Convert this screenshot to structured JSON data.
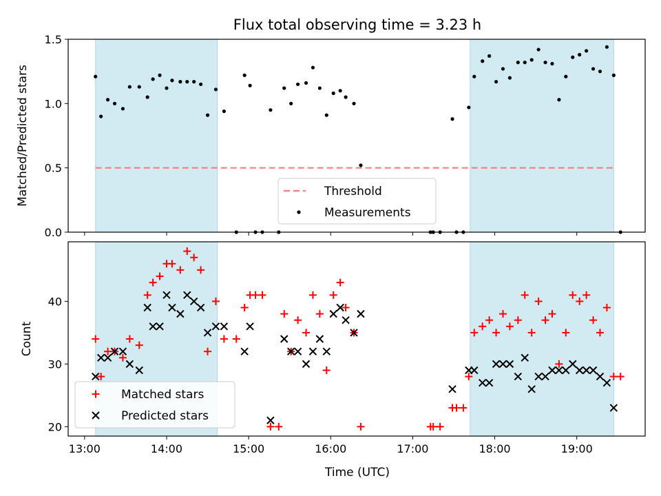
{
  "title": "Flux total observing time = 3.23 h",
  "colors": {
    "threshold": "#f08080",
    "shade": "#add8e6",
    "matched": "#ff0000",
    "predicted": "#000000",
    "measurement": "#000000"
  },
  "chart_data": [
    {
      "type": "scatter",
      "panel": "top",
      "ylabel": "Matched/Predicted stars",
      "xlabel": "",
      "xlim": [
        "12:48",
        "19:50"
      ],
      "ylim": [
        0,
        1.5
      ],
      "yticks": [
        "0.0",
        "0.5",
        "1.0",
        "1.5"
      ],
      "shaded_regions": [
        [
          "13:08",
          "14:37"
        ],
        [
          "17:42",
          "19:27"
        ]
      ],
      "threshold": {
        "name": "Threshold",
        "y": 0.5,
        "x_range": [
          "13:08",
          "19:27"
        ]
      },
      "legend": {
        "entries": [
          "Threshold",
          "Measurements"
        ],
        "position": "lower center"
      },
      "series": [
        {
          "name": "Measurements",
          "points": [
            [
              "13:08",
              1.21
            ],
            [
              "13:12",
              0.9
            ],
            [
              "13:17",
              1.03
            ],
            [
              "13:22",
              1.0
            ],
            [
              "13:28",
              0.96
            ],
            [
              "13:33",
              1.13
            ],
            [
              "13:40",
              1.13
            ],
            [
              "13:46",
              1.05
            ],
            [
              "13:50",
              1.19
            ],
            [
              "13:55",
              1.22
            ],
            [
              "14:00",
              1.12
            ],
            [
              "14:04",
              1.18
            ],
            [
              "14:10",
              1.17
            ],
            [
              "14:15",
              1.17
            ],
            [
              "14:20",
              1.17
            ],
            [
              "14:25",
              1.15
            ],
            [
              "14:30",
              0.91
            ],
            [
              "14:36",
              1.11
            ],
            [
              "14:42",
              0.94
            ],
            [
              "14:51",
              0.0
            ],
            [
              "15:05",
              0.0
            ],
            [
              "15:10",
              0.0
            ],
            [
              "15:22",
              0.0
            ],
            [
              "14:57",
              1.22
            ],
            [
              "15:01",
              1.14
            ],
            [
              "15:16",
              0.95
            ],
            [
              "15:26",
              1.12
            ],
            [
              "15:31",
              1.0
            ],
            [
              "15:36",
              1.15
            ],
            [
              "15:42",
              1.16
            ],
            [
              "15:47",
              1.28
            ],
            [
              "15:52",
              1.12
            ],
            [
              "15:57",
              0.91
            ],
            [
              "16:02",
              1.08
            ],
            [
              "16:07",
              1.1
            ],
            [
              "16:11",
              1.05
            ],
            [
              "16:17",
              1.0
            ],
            [
              "16:22",
              0.52
            ],
            [
              "17:13",
              0.0
            ],
            [
              "17:15",
              0.0
            ],
            [
              "17:20",
              0.0
            ],
            [
              "17:32",
              0.0
            ],
            [
              "17:37",
              0.0
            ],
            [
              "17:29",
              0.88
            ],
            [
              "17:41",
              0.97
            ],
            [
              "17:45",
              1.21
            ],
            [
              "17:51",
              1.33
            ],
            [
              "17:56",
              1.37
            ],
            [
              "18:01",
              1.17
            ],
            [
              "18:06",
              1.27
            ],
            [
              "18:11",
              1.2
            ],
            [
              "18:17",
              1.32
            ],
            [
              "18:22",
              1.32
            ],
            [
              "18:27",
              1.34
            ],
            [
              "18:32",
              1.42
            ],
            [
              "18:37",
              1.32
            ],
            [
              "18:42",
              1.31
            ],
            [
              "18:47",
              1.03
            ],
            [
              "18:52",
              1.21
            ],
            [
              "18:57",
              1.36
            ],
            [
              "19:02",
              1.38
            ],
            [
              "19:07",
              1.41
            ],
            [
              "19:12",
              1.27
            ],
            [
              "19:17",
              1.25
            ],
            [
              "19:22",
              1.44
            ],
            [
              "19:27",
              1.22
            ],
            [
              "19:32",
              0.0
            ]
          ]
        }
      ]
    },
    {
      "type": "scatter",
      "panel": "bottom",
      "xlabel": "Time (UTC)",
      "ylabel": "Count",
      "xlim": [
        "12:48",
        "19:50"
      ],
      "ylim": [
        18.5,
        49.5
      ],
      "xticks": [
        "13:00",
        "14:00",
        "15:00",
        "16:00",
        "17:00",
        "18:00",
        "19:00"
      ],
      "yticks": [
        "20",
        "30",
        "40"
      ],
      "shaded_regions": [
        [
          "13:08",
          "14:37"
        ],
        [
          "17:42",
          "19:27"
        ]
      ],
      "legend": {
        "entries": [
          "Matched stars",
          "Predicted stars"
        ],
        "position": "lower left"
      },
      "series": [
        {
          "name": "Matched stars",
          "marker": "+",
          "points": [
            [
              "13:08",
              34
            ],
            [
              "13:12",
              28
            ],
            [
              "13:17",
              32
            ],
            [
              "13:22",
              32
            ],
            [
              "13:28",
              31
            ],
            [
              "13:33",
              34
            ],
            [
              "13:40",
              33
            ],
            [
              "13:46",
              41
            ],
            [
              "13:50",
              43
            ],
            [
              "13:55",
              44
            ],
            [
              "14:00",
              46
            ],
            [
              "14:04",
              46
            ],
            [
              "14:10",
              45
            ],
            [
              "14:15",
              48
            ],
            [
              "14:20",
              47
            ],
            [
              "14:25",
              45
            ],
            [
              "14:30",
              32
            ],
            [
              "14:36",
              40
            ],
            [
              "14:42",
              34
            ],
            [
              "14:51",
              34
            ],
            [
              "14:57",
              39
            ],
            [
              "15:01",
              41
            ],
            [
              "15:05",
              41
            ],
            [
              "15:10",
              41
            ],
            [
              "15:16",
              20
            ],
            [
              "15:22",
              20
            ],
            [
              "15:26",
              38
            ],
            [
              "15:31",
              32
            ],
            [
              "15:36",
              37
            ],
            [
              "15:42",
              35
            ],
            [
              "15:47",
              41
            ],
            [
              "15:52",
              38
            ],
            [
              "15:57",
              29
            ],
            [
              "16:02",
              41
            ],
            [
              "16:07",
              43
            ],
            [
              "16:11",
              39
            ],
            [
              "16:17",
              35
            ],
            [
              "16:22",
              20
            ],
            [
              "17:13",
              20
            ],
            [
              "17:15",
              20
            ],
            [
              "17:20",
              20
            ],
            [
              "17:29",
              23
            ],
            [
              "17:32",
              23
            ],
            [
              "17:37",
              23
            ],
            [
              "17:41",
              28
            ],
            [
              "17:45",
              35
            ],
            [
              "17:51",
              36
            ],
            [
              "17:56",
              37
            ],
            [
              "18:01",
              35
            ],
            [
              "18:06",
              38
            ],
            [
              "18:11",
              36
            ],
            [
              "18:17",
              37
            ],
            [
              "18:22",
              41
            ],
            [
              "18:27",
              35
            ],
            [
              "18:32",
              40
            ],
            [
              "18:37",
              37
            ],
            [
              "18:42",
              38
            ],
            [
              "18:47",
              30
            ],
            [
              "18:52",
              35
            ],
            [
              "18:57",
              41
            ],
            [
              "19:02",
              40
            ],
            [
              "19:07",
              41
            ],
            [
              "19:12",
              37
            ],
            [
              "19:17",
              35
            ],
            [
              "19:22",
              39
            ],
            [
              "19:27",
              28
            ],
            [
              "19:32",
              28
            ]
          ]
        },
        {
          "name": "Predicted stars",
          "marker": "x",
          "points": [
            [
              "13:08",
              28
            ],
            [
              "13:12",
              31
            ],
            [
              "13:17",
              31
            ],
            [
              "13:22",
              32
            ],
            [
              "13:28",
              32
            ],
            [
              "13:33",
              30
            ],
            [
              "13:40",
              29
            ],
            [
              "13:46",
              39
            ],
            [
              "13:50",
              36
            ],
            [
              "13:55",
              36
            ],
            [
              "14:00",
              41
            ],
            [
              "14:04",
              39
            ],
            [
              "14:10",
              38
            ],
            [
              "14:15",
              41
            ],
            [
              "14:20",
              40
            ],
            [
              "14:25",
              39
            ],
            [
              "14:30",
              35
            ],
            [
              "14:36",
              36
            ],
            [
              "14:42",
              36
            ],
            [
              "14:57",
              32
            ],
            [
              "15:01",
              36
            ],
            [
              "15:16",
              21
            ],
            [
              "15:26",
              34
            ],
            [
              "15:31",
              32
            ],
            [
              "15:36",
              32
            ],
            [
              "15:42",
              30
            ],
            [
              "15:47",
              32
            ],
            [
              "15:52",
              34
            ],
            [
              "15:57",
              32
            ],
            [
              "16:02",
              38
            ],
            [
              "16:07",
              39
            ],
            [
              "16:11",
              37
            ],
            [
              "16:17",
              35
            ],
            [
              "16:22",
              38
            ],
            [
              "17:29",
              26
            ],
            [
              "17:41",
              29
            ],
            [
              "17:45",
              29
            ],
            [
              "17:51",
              27
            ],
            [
              "17:56",
              27
            ],
            [
              "18:01",
              30
            ],
            [
              "18:06",
              30
            ],
            [
              "18:11",
              30
            ],
            [
              "18:17",
              28
            ],
            [
              "18:22",
              31
            ],
            [
              "18:27",
              26
            ],
            [
              "18:32",
              28
            ],
            [
              "18:37",
              28
            ],
            [
              "18:42",
              29
            ],
            [
              "18:47",
              29
            ],
            [
              "18:52",
              29
            ],
            [
              "18:57",
              30
            ],
            [
              "19:02",
              29
            ],
            [
              "19:07",
              29
            ],
            [
              "19:12",
              29
            ],
            [
              "19:17",
              28
            ],
            [
              "19:22",
              27
            ],
            [
              "19:27",
              23
            ]
          ]
        }
      ]
    }
  ]
}
